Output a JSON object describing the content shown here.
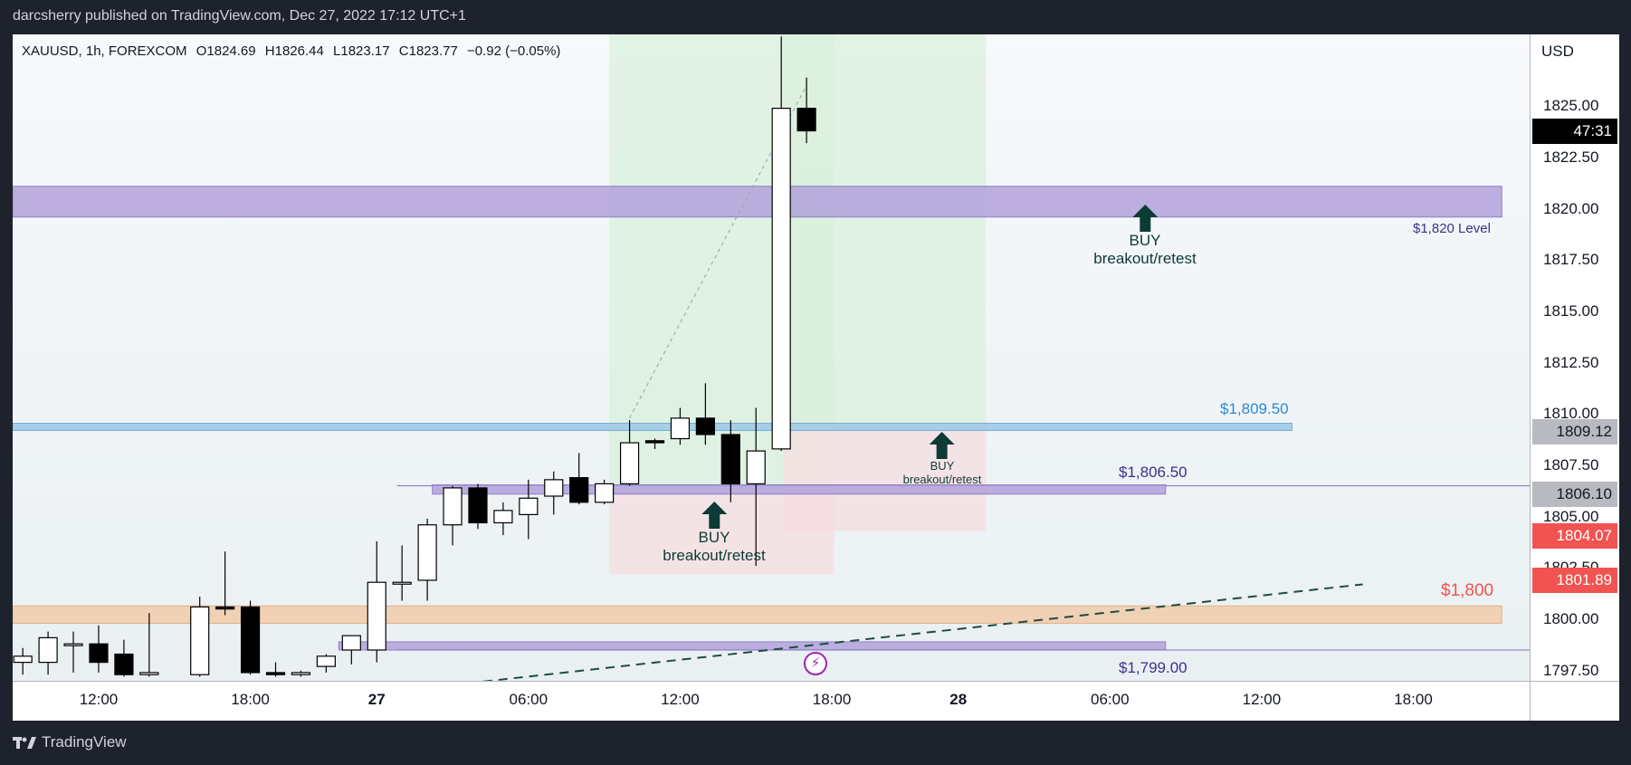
{
  "header": {
    "publisher_line": "darcsherry published on TradingView.com, Dec 27, 2022 17:12 UTC+1"
  },
  "legend": {
    "symbol": "XAUUSD, 1h, FOREXCOM",
    "open": "O1824.69",
    "high": "H1826.44",
    "low": "L1823.17",
    "close": "C1823.77",
    "change": "−0.92 (−0.05%)"
  },
  "footer": {
    "brand": "TradingView"
  },
  "colors": {
    "bull_body": "#ffffff",
    "bear_body": "#000000",
    "candle_outline": "#000000",
    "zone_purple": "#b3a3db",
    "zone_blue": "#9ec8e6",
    "zone_orange": "#f1ccab",
    "target_green": "#d9f0dc",
    "stop_red": "#f6dde0",
    "label_purple": "#3b2f8f",
    "label_blue": "#2a8ad6",
    "label_red": "#f05350",
    "arrow_dark": "#0d3b36",
    "tag_gray": "#b8babf",
    "tag_red": "#f05350",
    "tag_black": "#000000"
  },
  "chart_data": {
    "type": "candlestick",
    "symbol": "XAUUSD",
    "interval": "1h",
    "currency": "USD",
    "ylim": [
      1797.0,
      1828.5
    ],
    "y_ticks": [
      "1825.00",
      "1822.50",
      "1820.00",
      "1817.50",
      "1815.00",
      "1812.50",
      "1810.00",
      "1807.50",
      "1805.00",
      "1802.50",
      "1800.00",
      "1797.50"
    ],
    "x_ticks": [
      {
        "label": "12:00",
        "hour": 6,
        "bold": false
      },
      {
        "label": "18:00",
        "hour": 12,
        "bold": false
      },
      {
        "label": "27",
        "hour": 17,
        "bold": true
      },
      {
        "label": "06:00",
        "hour": 23,
        "bold": false
      },
      {
        "label": "12:00",
        "hour": 29,
        "bold": false
      },
      {
        "label": "18:00",
        "hour": 35,
        "bold": false
      },
      {
        "label": "28",
        "hour": 40,
        "bold": true
      },
      {
        "label": "06:00",
        "hour": 46,
        "bold": false
      },
      {
        "label": "12:00",
        "hour": 52,
        "bold": false
      },
      {
        "label": "18:00",
        "hour": 58,
        "bold": false
      }
    ],
    "x_range_hours": [
      2.6,
      62.6
    ],
    "candles": [
      {
        "t": 3,
        "o": 1797.9,
        "h": 1798.6,
        "l": 1797.3,
        "c": 1798.2
      },
      {
        "t": 4,
        "o": 1797.9,
        "h": 1799.4,
        "l": 1797.3,
        "c": 1799.1
      },
      {
        "t": 5,
        "o": 1798.8,
        "h": 1799.4,
        "l": 1797.4,
        "c": 1798.8
      },
      {
        "t": 6,
        "o": 1798.8,
        "h": 1799.7,
        "l": 1797.4,
        "c": 1797.9
      },
      {
        "t": 7,
        "o": 1798.3,
        "h": 1799.0,
        "l": 1797.2,
        "c": 1797.3
      },
      {
        "t": 8,
        "o": 1797.3,
        "h": 1800.3,
        "l": 1797.2,
        "c": 1797.4
      },
      {
        "t": 10,
        "o": 1797.3,
        "h": 1801.1,
        "l": 1797.2,
        "c": 1800.6
      },
      {
        "t": 11,
        "o": 1800.6,
        "h": 1803.3,
        "l": 1800.2,
        "c": 1800.5
      },
      {
        "t": 12,
        "o": 1800.6,
        "h": 1800.9,
        "l": 1797.3,
        "c": 1797.4
      },
      {
        "t": 13,
        "o": 1797.4,
        "h": 1797.9,
        "l": 1797.2,
        "c": 1797.3
      },
      {
        "t": 14,
        "o": 1797.3,
        "h": 1797.5,
        "l": 1797.2,
        "c": 1797.4
      },
      {
        "t": 15,
        "o": 1797.7,
        "h": 1798.3,
        "l": 1797.4,
        "c": 1798.2
      },
      {
        "t": 16,
        "o": 1798.5,
        "h": 1799.2,
        "l": 1797.8,
        "c": 1799.2
      },
      {
        "t": 17,
        "o": 1798.5,
        "h": 1803.8,
        "l": 1797.9,
        "c": 1801.8
      },
      {
        "t": 18,
        "o": 1801.8,
        "h": 1803.6,
        "l": 1800.9,
        "c": 1801.8
      },
      {
        "t": 19,
        "o": 1801.9,
        "h": 1804.9,
        "l": 1800.9,
        "c": 1804.6
      },
      {
        "t": 20,
        "o": 1804.6,
        "h": 1806.5,
        "l": 1803.6,
        "c": 1806.4
      },
      {
        "t": 21,
        "o": 1806.4,
        "h": 1806.6,
        "l": 1804.4,
        "c": 1804.7
      },
      {
        "t": 22,
        "o": 1804.7,
        "h": 1805.7,
        "l": 1804.1,
        "c": 1805.3
      },
      {
        "t": 23,
        "o": 1805.1,
        "h": 1806.8,
        "l": 1803.9,
        "c": 1805.9
      },
      {
        "t": 24,
        "o": 1806.0,
        "h": 1807.2,
        "l": 1805.1,
        "c": 1806.8
      },
      {
        "t": 25,
        "o": 1806.9,
        "h": 1808.1,
        "l": 1805.6,
        "c": 1805.7
      },
      {
        "t": 26,
        "o": 1805.7,
        "h": 1806.8,
        "l": 1805.6,
        "c": 1806.6
      },
      {
        "t": 27,
        "o": 1806.6,
        "h": 1809.7,
        "l": 1806.5,
        "c": 1808.6
      },
      {
        "t": 28,
        "o": 1808.7,
        "h": 1808.8,
        "l": 1808.3,
        "c": 1808.6
      },
      {
        "t": 29,
        "o": 1808.8,
        "h": 1810.3,
        "l": 1808.5,
        "c": 1809.8
      },
      {
        "t": 30,
        "o": 1809.8,
        "h": 1811.5,
        "l": 1808.5,
        "c": 1809.0
      },
      {
        "t": 31,
        "o": 1809.0,
        "h": 1809.7,
        "l": 1805.7,
        "c": 1806.6
      },
      {
        "t": 32,
        "o": 1806.6,
        "h": 1810.3,
        "l": 1802.6,
        "c": 1808.2
      },
      {
        "t": 33,
        "o": 1808.3,
        "h": 1828.4,
        "l": 1808.2,
        "c": 1824.9
      },
      {
        "t": 34,
        "o": 1824.9,
        "h": 1826.4,
        "l": 1823.2,
        "c": 1823.8
      }
    ],
    "zones": [
      {
        "name": "$1,820 Level",
        "top": 1821.1,
        "bottom": 1819.6,
        "t0": 2.6,
        "t1": 61.5,
        "color": "purple"
      },
      {
        "name": "$1,809.50",
        "top": 1809.55,
        "bottom": 1809.2,
        "t0": 2.6,
        "t1": 53.2,
        "color": "blue"
      },
      {
        "name": "$1,806.50",
        "top": 1806.55,
        "bottom": 1806.1,
        "t0": 19.2,
        "t1": 48.2,
        "color": "purple"
      },
      {
        "name": "$1,800",
        "top": 1800.65,
        "bottom": 1799.8,
        "t0": 2.6,
        "t1": 61.5,
        "color": "orange"
      },
      {
        "name": "$1,799.00",
        "top": 1798.9,
        "bottom": 1798.5,
        "t0": 15.5,
        "t1": 48.2,
        "color": "purple"
      }
    ],
    "horizontal_lines": [
      1806.5,
      1798.5
    ],
    "trend_line": {
      "from": [
        20,
        1796.8
      ],
      "to": [
        56,
        1801.7
      ]
    },
    "positions": [
      {
        "t0": 26.2,
        "t1": 35.1,
        "entry": 1806.25,
        "target": 1831.5,
        "stop": 1802.2
      },
      {
        "t0": 33.1,
        "t1": 41.1,
        "entry": 1809.3,
        "target": 1831.5,
        "stop": 1804.3
      }
    ],
    "zone_labels": {
      "level_1820": "$1,820 Level",
      "level_1809": "$1,809.50",
      "level_1806": "$1,806.50",
      "level_1800": "$1,800",
      "level_1799": "$1,799.00"
    },
    "annotations": {
      "buy": "BUY",
      "setup": "breakout/retest"
    },
    "price_tags": {
      "countdown": "47:31",
      "p1809": "1809.12",
      "p1806": "1806.10",
      "p1804": "1804.07",
      "p1801": "1801.89"
    },
    "currency_label": "USD"
  }
}
